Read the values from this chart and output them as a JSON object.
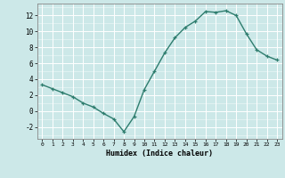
{
  "x": [
    0,
    1,
    2,
    3,
    4,
    5,
    6,
    7,
    8,
    9,
    10,
    11,
    12,
    13,
    14,
    15,
    16,
    17,
    18,
    19,
    20,
    21,
    22,
    23
  ],
  "y": [
    3.3,
    2.8,
    2.3,
    1.8,
    1.0,
    0.5,
    -0.3,
    -1.0,
    -2.6,
    -0.7,
    2.7,
    5.0,
    7.3,
    9.2,
    10.5,
    11.3,
    12.5,
    12.4,
    12.6,
    12.0,
    9.7,
    7.7,
    6.9,
    6.4
  ],
  "xlabel": "Humidex (Indice chaleur)",
  "ylim": [
    -3.5,
    13.5
  ],
  "xlim": [
    -0.5,
    23.5
  ],
  "yticks": [
    -2,
    0,
    2,
    4,
    6,
    8,
    10,
    12
  ],
  "xticks": [
    0,
    1,
    2,
    3,
    4,
    5,
    6,
    7,
    8,
    9,
    10,
    11,
    12,
    13,
    14,
    15,
    16,
    17,
    18,
    19,
    20,
    21,
    22,
    23
  ],
  "line_color": "#2e7d6e",
  "marker": "+",
  "bg_color": "#cce8e8",
  "grid_color": "#ffffff",
  "grid_minor_color": "#ddf0f0"
}
